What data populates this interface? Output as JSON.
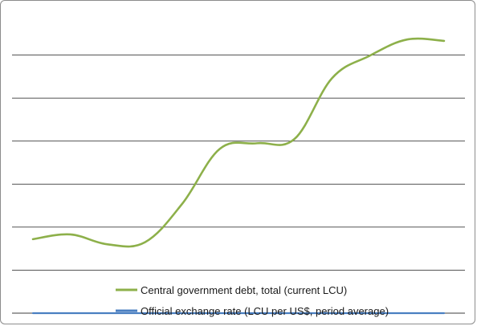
{
  "chart_data": {
    "type": "line",
    "title": "",
    "xlabel": "",
    "ylabel": "",
    "grid": true,
    "gridline_count": 7,
    "legend_position": "bottom",
    "x": [
      1,
      2,
      3,
      4,
      5,
      6,
      7,
      8,
      9,
      10,
      11,
      12
    ],
    "ylim": [
      0,
      7
    ],
    "series": [
      {
        "name": "Central government debt, total (current LCU)",
        "color": "#8db04a",
        "values": [
          1.72,
          1.83,
          1.6,
          1.65,
          2.55,
          3.82,
          3.95,
          4.05,
          5.46,
          5.98,
          6.36,
          6.33
        ]
      },
      {
        "name": "Official exchange rate (LCU per US$, period average)",
        "color": "#4a7fc1",
        "values": [
          0.0,
          0.0,
          0.0,
          0.0,
          0.0,
          0.0,
          0.0,
          0.0,
          0.0,
          0.0,
          0.0,
          0.0
        ]
      }
    ]
  }
}
